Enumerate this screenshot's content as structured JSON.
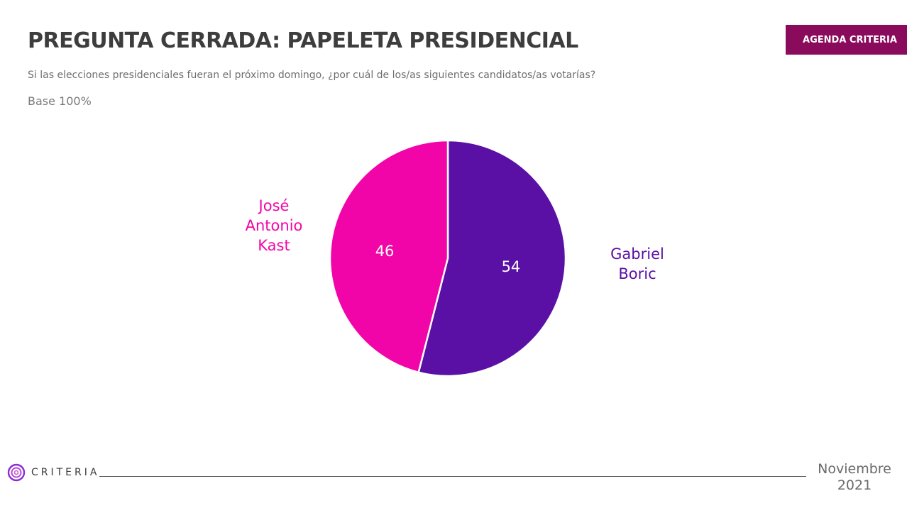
{
  "header": {
    "title": "PREGUNTA CERRADA: PAPELETA PRESIDENCIAL",
    "subtitle": "Si las elecciones presidenciales fueran el próximo domingo, ¿por cuál de los/as siguientes candidatos/as votarías?",
    "base": "Base 100%",
    "badge": "AGENDA CRITERIA"
  },
  "chart_data": {
    "type": "pie",
    "title": "",
    "slices": [
      {
        "name": "Gabriel Boric",
        "label_lines": [
          "Gabriel",
          "Boric"
        ],
        "value": 54,
        "value_label": "54",
        "color": "#5a0fa5"
      },
      {
        "name": "José Antonio Kast",
        "label_lines": [
          "José",
          "Antonio",
          "Kast"
        ],
        "value": 46,
        "value_label": "46",
        "color": "#f205a8"
      }
    ],
    "start_angle": "12 o'clock",
    "direction": "clockwise",
    "legend": "none"
  },
  "footer": {
    "brand": "CRITERIA",
    "date_month": "Noviembre",
    "date_year": "2021"
  },
  "colors": {
    "badge": "#8a0a5c",
    "title": "#3d3d3d",
    "logo_ring": "#8a2bd6"
  }
}
